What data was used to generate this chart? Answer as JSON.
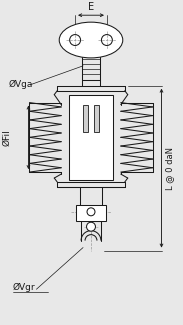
{
  "bg_color": "#e8e8e8",
  "line_color": "#1a1a1a",
  "dash_color": "#999999",
  "labels": {
    "E": "E",
    "Vga": "ØVga",
    "Fil": "ØFil",
    "Vgr": "ØVgr",
    "L": "L @ 0 daN"
  },
  "figsize": [
    1.83,
    3.25
  ],
  "dpi": 100
}
